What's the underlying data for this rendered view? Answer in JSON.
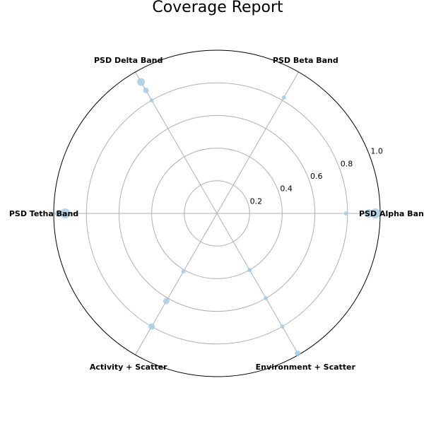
{
  "chart_data": {
    "type": "scatter",
    "subtype": "polar",
    "title": "Coverage Report",
    "categories": [
      "PSD Alpha Band",
      "PSD Beta Band",
      "PSD Delta Band",
      "PSD Tetha Band",
      "Activity + Scatter",
      "Environment + Scatter"
    ],
    "r_ticks": [
      0.2,
      0.4,
      0.6,
      0.8,
      1.0
    ],
    "r_tick_labels": [
      "0.2",
      "0.4",
      "0.6",
      "0.8",
      "1.0"
    ],
    "rlim": [
      0,
      1.0
    ],
    "grid": true,
    "color": "#a6cee3",
    "points": [
      {
        "category": "PSD Alpha Band",
        "r": 0.79,
        "size": 3
      },
      {
        "category": "PSD Alpha Band",
        "r": 0.93,
        "size": 6
      },
      {
        "category": "PSD Alpha Band",
        "r": 0.97,
        "size": 7
      },
      {
        "category": "PSD Beta Band",
        "r": 0.82,
        "size": 3
      },
      {
        "category": "PSD Delta Band",
        "r": 0.8,
        "size": 3
      },
      {
        "category": "PSD Delta Band",
        "r": 0.87,
        "size": 4
      },
      {
        "category": "PSD Delta Band",
        "r": 0.93,
        "size": 5.5
      },
      {
        "category": "PSD Tetha Band",
        "r": 0.93,
        "size": 7
      },
      {
        "category": "PSD Tetha Band",
        "r": 0.97,
        "size": 5
      },
      {
        "category": "Activity + Scatter",
        "r": 0.41,
        "size": 3
      },
      {
        "category": "Activity + Scatter",
        "r": 0.62,
        "size": 4.5
      },
      {
        "category": "Activity + Scatter",
        "r": 0.8,
        "size": 4.5
      },
      {
        "category": "Environment + Scatter",
        "r": 0.4,
        "size": 3
      },
      {
        "category": "Environment + Scatter",
        "r": 0.6,
        "size": 3
      },
      {
        "category": "Environment + Scatter",
        "r": 0.8,
        "size": 3
      },
      {
        "category": "Environment + Scatter",
        "r": 0.99,
        "size": 4
      }
    ]
  }
}
